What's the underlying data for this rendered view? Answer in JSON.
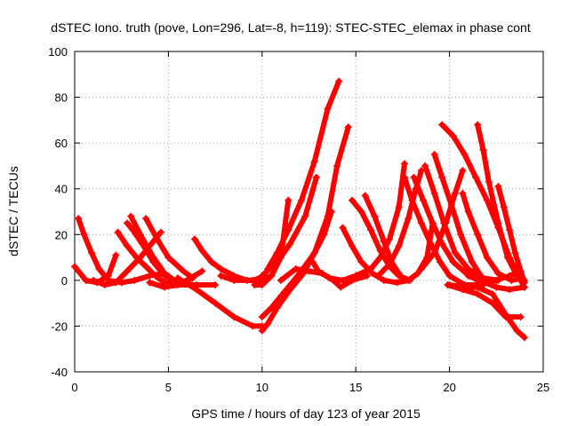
{
  "chart_data": {
    "type": "scatter",
    "title": "dSTEC Iono. truth (pove, Lon=296, Lat=-8, h=119): STEC-STEC_elemax in phase cont",
    "xlabel": "GPS time / hours of day 123 of year 2015",
    "ylabel": "dSTEC  / TECUs",
    "xlim": [
      0,
      25
    ],
    "ylim": [
      -40,
      100
    ],
    "xticks": [
      0,
      5,
      10,
      15,
      20,
      25
    ],
    "yticks": [
      -40,
      -20,
      0,
      20,
      40,
      60,
      80,
      100
    ],
    "grid": true,
    "marker": "+",
    "color": "#ff0000",
    "series": [
      {
        "points": [
          [
            0.2,
            27
          ],
          [
            0.5,
            20
          ],
          [
            0.9,
            12
          ],
          [
            1.3,
            5
          ],
          [
            1.8,
            0
          ],
          [
            2.5,
            -1
          ],
          [
            3.2,
            0
          ],
          [
            4.0,
            2
          ],
          [
            4.8,
            3
          ]
        ]
      },
      {
        "points": [
          [
            0.0,
            6
          ],
          [
            0.6,
            0
          ],
          [
            1.2,
            -1
          ],
          [
            1.8,
            2
          ],
          [
            2.2,
            11
          ]
        ]
      },
      {
        "points": [
          [
            1.0,
            0
          ],
          [
            1.6,
            -2
          ],
          [
            2.2,
            -1
          ],
          [
            2.8,
            4
          ],
          [
            3.5,
            10
          ],
          [
            4.2,
            17
          ],
          [
            4.6,
            21
          ]
        ]
      },
      {
        "points": [
          [
            2.3,
            21
          ],
          [
            2.8,
            15
          ],
          [
            3.3,
            10
          ],
          [
            3.8,
            6
          ],
          [
            4.3,
            2
          ],
          [
            4.8,
            -1
          ],
          [
            5.3,
            -2
          ],
          [
            6.0,
            -1
          ]
        ]
      },
      {
        "points": [
          [
            2.8,
            25
          ],
          [
            3.1,
            22
          ],
          [
            3.6,
            16
          ],
          [
            4.2,
            8
          ],
          [
            4.8,
            2
          ],
          [
            5.5,
            -2
          ],
          [
            6.5,
            -2
          ],
          [
            7.5,
            -2
          ]
        ]
      },
      {
        "points": [
          [
            3.0,
            28
          ],
          [
            3.5,
            20
          ],
          [
            4.2,
            10
          ],
          [
            4.8,
            3
          ],
          [
            5.5,
            -1
          ],
          [
            6.2,
            -2
          ]
        ]
      },
      {
        "points": [
          [
            3.8,
            27
          ],
          [
            4.4,
            18
          ],
          [
            5.0,
            10
          ],
          [
            5.8,
            4
          ],
          [
            6.3,
            1
          ]
        ]
      },
      {
        "points": [
          [
            4.0,
            -1
          ],
          [
            4.8,
            -3
          ],
          [
            5.5,
            -2
          ],
          [
            6.2,
            1
          ],
          [
            6.8,
            4
          ]
        ]
      },
      {
        "points": [
          [
            6.4,
            18
          ],
          [
            6.8,
            13
          ],
          [
            7.3,
            8
          ],
          [
            7.8,
            5
          ],
          [
            8.5,
            2
          ],
          [
            9.2,
            0
          ],
          [
            10.0,
            0
          ],
          [
            10.5,
            2
          ]
        ]
      },
      {
        "points": [
          [
            5.5,
            1
          ],
          [
            6.5,
            -4
          ],
          [
            7.5,
            -10
          ],
          [
            8.5,
            -16
          ],
          [
            9.5,
            -20
          ],
          [
            10.0,
            -20
          ]
        ]
      },
      {
        "points": [
          [
            7.8,
            2
          ],
          [
            8.5,
            0
          ],
          [
            9.5,
            0
          ],
          [
            10.2,
            2
          ]
        ]
      },
      {
        "points": [
          [
            9.6,
            -2
          ],
          [
            10.0,
            -2
          ],
          [
            10.5,
            2
          ],
          [
            11.0,
            10
          ],
          [
            11.4,
            35
          ]
        ]
      },
      {
        "points": [
          [
            10.0,
            -22
          ],
          [
            10.3,
            -19
          ],
          [
            10.8,
            -12
          ],
          [
            11.5,
            -4
          ],
          [
            12.2,
            3
          ],
          [
            12.8,
            12
          ],
          [
            13.3,
            20
          ],
          [
            13.7,
            30
          ]
        ]
      },
      {
        "points": [
          [
            10.0,
            -16
          ],
          [
            10.5,
            -12
          ],
          [
            11.2,
            -5
          ],
          [
            12.0,
            3
          ],
          [
            12.8,
            12
          ],
          [
            13.5,
            28
          ],
          [
            14.0,
            50
          ],
          [
            14.6,
            67
          ]
        ]
      },
      {
        "points": [
          [
            10.3,
            5
          ],
          [
            10.8,
            12
          ],
          [
            11.4,
            22
          ],
          [
            12.1,
            35
          ],
          [
            12.8,
            52
          ],
          [
            13.5,
            75
          ],
          [
            14.1,
            87
          ]
        ]
      },
      {
        "points": [
          [
            10.0,
            2
          ],
          [
            10.8,
            8
          ],
          [
            11.5,
            16
          ],
          [
            12.3,
            28
          ],
          [
            12.9,
            45
          ]
        ]
      },
      {
        "points": [
          [
            11.0,
            0
          ],
          [
            11.8,
            5
          ],
          [
            12.5,
            4
          ],
          [
            13.2,
            3
          ],
          [
            13.8,
            0
          ],
          [
            14.2,
            -3
          ],
          [
            14.8,
            0
          ],
          [
            15.6,
            2
          ]
        ]
      },
      {
        "points": [
          [
            12.7,
            8
          ],
          [
            13.0,
            4
          ],
          [
            13.6,
            1
          ],
          [
            14.3,
            0
          ],
          [
            15.0,
            2
          ],
          [
            15.8,
            5
          ],
          [
            16.3,
            10
          ],
          [
            16.8,
            18
          ],
          [
            17.3,
            32
          ],
          [
            17.6,
            51
          ]
        ]
      },
      {
        "points": [
          [
            14.3,
            23
          ],
          [
            14.8,
            15
          ],
          [
            15.3,
            8
          ],
          [
            15.9,
            3
          ],
          [
            16.5,
            0
          ],
          [
            17.2,
            -1
          ],
          [
            17.8,
            0
          ],
          [
            18.3,
            3
          ],
          [
            18.8,
            10
          ],
          [
            19.1,
            25
          ]
        ]
      },
      {
        "points": [
          [
            14.8,
            35
          ],
          [
            15.3,
            30
          ],
          [
            15.8,
            22
          ],
          [
            16.3,
            13
          ],
          [
            16.8,
            6
          ],
          [
            17.3,
            2
          ],
          [
            17.9,
            0
          ]
        ]
      },
      {
        "points": [
          [
            15.5,
            37
          ],
          [
            16.0,
            28
          ],
          [
            16.5,
            17
          ],
          [
            16.9,
            8
          ],
          [
            17.3,
            3
          ]
        ]
      },
      {
        "points": [
          [
            16.2,
            2
          ],
          [
            16.8,
            7
          ],
          [
            17.3,
            15
          ],
          [
            17.8,
            27
          ],
          [
            18.2,
            40
          ],
          [
            18.5,
            48
          ]
        ]
      },
      {
        "points": [
          [
            17.6,
            45
          ],
          [
            18.0,
            35
          ],
          [
            18.5,
            25
          ],
          [
            19.0,
            16
          ],
          [
            19.5,
            8
          ],
          [
            20.0,
            2
          ],
          [
            20.8,
            -2
          ],
          [
            21.8,
            -2
          ]
        ]
      },
      {
        "points": [
          [
            18.1,
            45
          ],
          [
            18.6,
            35
          ],
          [
            19.1,
            25
          ],
          [
            19.6,
            16
          ],
          [
            20.2,
            8
          ],
          [
            20.9,
            3
          ],
          [
            21.6,
            0
          ]
        ]
      },
      {
        "points": [
          [
            18.7,
            50
          ],
          [
            19.2,
            38
          ],
          [
            19.7,
            25
          ],
          [
            20.3,
            12
          ],
          [
            21.0,
            5
          ],
          [
            21.8,
            1
          ],
          [
            22.6,
            0
          ]
        ]
      },
      {
        "points": [
          [
            19.2,
            55
          ],
          [
            19.6,
            45
          ],
          [
            20.1,
            33
          ],
          [
            20.6,
            20
          ],
          [
            21.2,
            8
          ],
          [
            21.9,
            -1
          ],
          [
            22.5,
            -3
          ],
          [
            23.2,
            -4
          ],
          [
            24.0,
            -3
          ]
        ]
      },
      {
        "points": [
          [
            19.6,
            68
          ],
          [
            20.2,
            63
          ],
          [
            20.8,
            55
          ],
          [
            21.4,
            45
          ],
          [
            22.0,
            35
          ],
          [
            22.6,
            23
          ],
          [
            23.2,
            10
          ],
          [
            23.8,
            0
          ],
          [
            24.0,
            -3
          ]
        ]
      },
      {
        "points": [
          [
            18.5,
            5
          ],
          [
            19.2,
            12
          ],
          [
            19.8,
            25
          ],
          [
            20.3,
            38
          ],
          [
            20.7,
            48
          ]
        ]
      },
      {
        "points": [
          [
            20.7,
            38
          ],
          [
            21.0,
            30
          ],
          [
            21.5,
            20
          ],
          [
            22.0,
            10
          ],
          [
            22.6,
            3
          ],
          [
            23.3,
            0
          ],
          [
            23.9,
            1
          ]
        ]
      },
      {
        "points": [
          [
            21.5,
            68
          ],
          [
            21.8,
            57
          ],
          [
            22.1,
            43
          ],
          [
            22.6,
            25
          ],
          [
            23.1,
            10
          ],
          [
            23.6,
            2
          ],
          [
            24.0,
            0
          ]
        ]
      },
      {
        "points": [
          [
            19.9,
            -2
          ],
          [
            20.7,
            -4
          ],
          [
            21.5,
            -6
          ],
          [
            22.3,
            -10
          ],
          [
            23.0,
            -16
          ],
          [
            23.8,
            -16
          ]
        ]
      },
      {
        "points": [
          [
            20.0,
            -2
          ],
          [
            20.8,
            -3
          ],
          [
            21.5,
            -3
          ],
          [
            22.3,
            -6
          ],
          [
            23.0,
            -15
          ],
          [
            23.6,
            -22
          ],
          [
            24.0,
            -25
          ]
        ]
      },
      {
        "points": [
          [
            22.6,
            41
          ],
          [
            22.9,
            32
          ],
          [
            23.2,
            22
          ],
          [
            23.5,
            12
          ],
          [
            23.8,
            4
          ],
          [
            24.0,
            -1
          ]
        ]
      },
      {
        "points": [
          [
            21.0,
            2
          ],
          [
            21.8,
            -1
          ],
          [
            22.5,
            0
          ],
          [
            23.2,
            2
          ],
          [
            23.8,
            4
          ]
        ]
      }
    ]
  }
}
